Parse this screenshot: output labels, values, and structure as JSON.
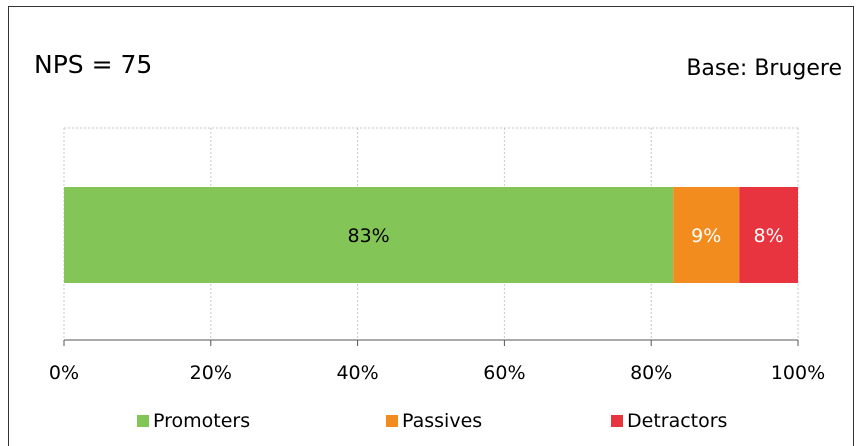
{
  "header": {
    "nps_label": "NPS = 75",
    "base_label": "Base: Brugere"
  },
  "chart_data": {
    "type": "bar",
    "orientation": "horizontal",
    "stacked": true,
    "normalized": true,
    "categories": [
      ""
    ],
    "series": [
      {
        "name": "Promoters",
        "values": [
          83
        ],
        "label": "83%",
        "color": "#84c557",
        "label_color": "#000000"
      },
      {
        "name": "Passives",
        "values": [
          9
        ],
        "label": "9%",
        "color": "#f28c1e",
        "label_color": "#ffffff"
      },
      {
        "name": "Detractors",
        "values": [
          8
        ],
        "label": "8%",
        "color": "#e8343e",
        "label_color": "#ffffff"
      }
    ],
    "xlim": [
      0,
      100
    ],
    "xticks": [
      "0%",
      "20%",
      "40%",
      "60%",
      "80%",
      "100%"
    ],
    "grid": true,
    "legend_position": "bottom"
  }
}
